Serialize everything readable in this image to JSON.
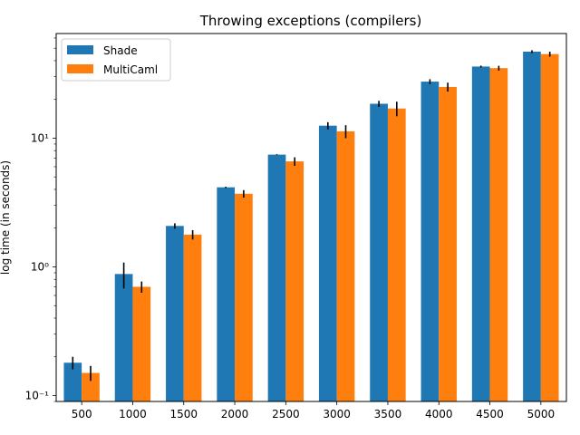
{
  "chart_data": {
    "type": "bar",
    "title": "Throwing exceptions (compilers)",
    "xlabel": "",
    "ylabel": "log time (in seconds)",
    "yscale": "log",
    "ylim": [
      0.09,
      65
    ],
    "legend_position": "upper-left",
    "grid": false,
    "categories": [
      "500",
      "1000",
      "1500",
      "2000",
      "2500",
      "3000",
      "3500",
      "4000",
      "4500",
      "5000"
    ],
    "series": [
      {
        "name": "Shade",
        "color": "#1f77b4",
        "values": [
          0.18,
          0.88,
          2.08,
          4.15,
          7.45,
          12.5,
          18.5,
          27.5,
          36.0,
          47.0
        ],
        "errors": [
          0.02,
          0.2,
          0.1,
          0.05,
          0.05,
          0.8,
          1.0,
          1.2,
          0.6,
          1.2
        ]
      },
      {
        "name": "MultiCaml",
        "color": "#ff7f0e",
        "values": [
          0.15,
          0.7,
          1.78,
          3.7,
          6.6,
          11.3,
          17.0,
          25.0,
          35.0,
          45.0
        ],
        "errors": [
          0.02,
          0.07,
          0.15,
          0.25,
          0.5,
          1.3,
          2.2,
          2.0,
          1.5,
          2.0
        ]
      }
    ],
    "ytick_labels": [
      "10⁻¹",
      "10⁰",
      "10¹"
    ]
  }
}
